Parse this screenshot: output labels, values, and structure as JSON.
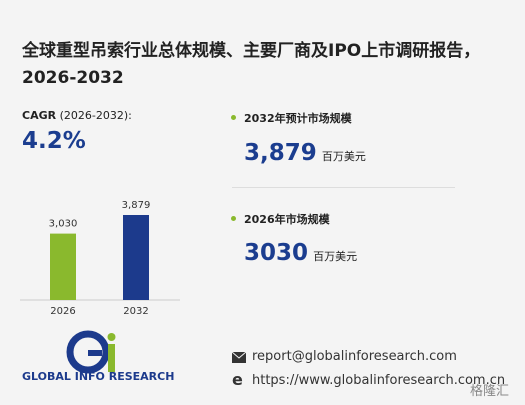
{
  "title": "全球重型吊索行业总体规模、主要厂商及IPO上市调研报告，2026-2032",
  "cagr": {
    "label": "CAGR",
    "period": "(2026-2032):",
    "value": "4.2%"
  },
  "chart_data": {
    "type": "bar",
    "categories": [
      "2026",
      "2032"
    ],
    "values": [
      3030,
      3879
    ],
    "value_labels": [
      "3,030",
      "3,879"
    ],
    "colors": [
      "#8ab92d",
      "#1c3a8c"
    ]
  },
  "stats": [
    {
      "label": "2032年预计市场规模",
      "value": "3,879",
      "unit": "百万美元"
    },
    {
      "label": "2026年市场规模",
      "value": "3030",
      "unit": "百万美元"
    }
  ],
  "logo": "GLOBAL INFO RESEARCH",
  "email": "report@globalinforesearch.com",
  "website": "https://www.globalinforesearch.com.cn",
  "watermark": "格隆汇"
}
